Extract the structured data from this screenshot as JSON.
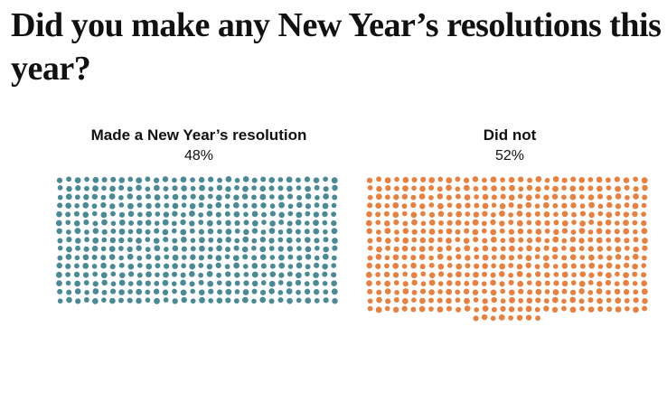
{
  "title": "Did you make any New Year’s resolutions this year?",
  "chart_data": {
    "type": "waffle",
    "title": "Did you make any New Year’s resolutions this year?",
    "unit": "%",
    "series": [
      {
        "name": "Made a New Year’s resolution",
        "value": 48,
        "value_label": "48%",
        "color": "#4a8a96"
      },
      {
        "name": "Did not",
        "value": 52,
        "value_label": "52%",
        "color": "#e8813f"
      }
    ]
  }
}
